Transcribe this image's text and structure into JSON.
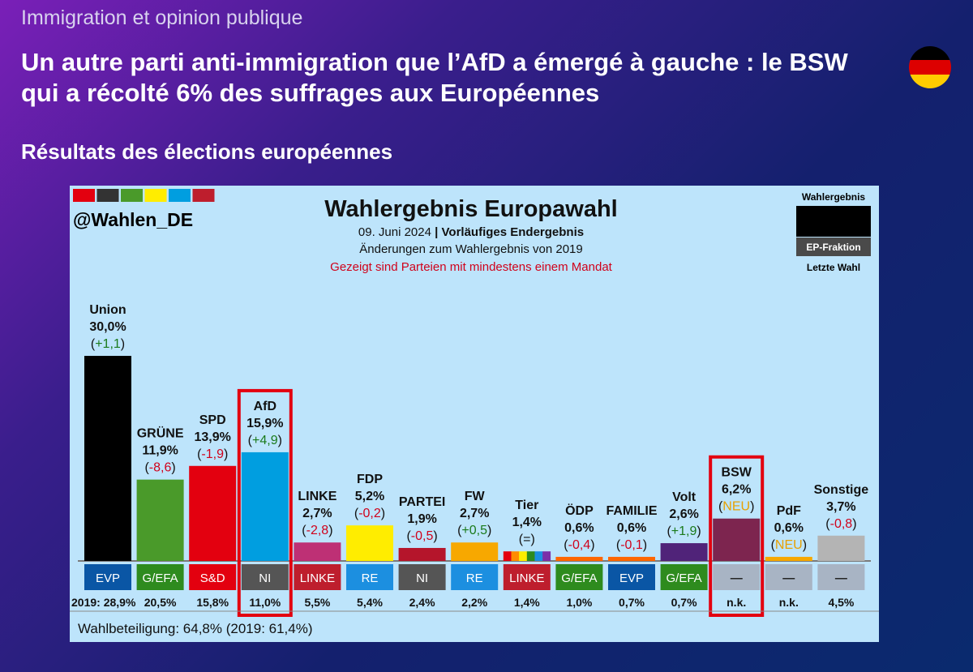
{
  "kicker": "Immigration et opinion publique",
  "headline": "Un autre parti anti-immigration que l’AfD a émergé à gauche : le BSW qui a récolté 6% des suffrages aux Européennes",
  "subhead": "Résultats des élections européennes",
  "flag_colors": [
    "#000000",
    "#dd0000",
    "#ffcc00"
  ],
  "chart_data": {
    "type": "bar",
    "handle": "@Wahlen_DE",
    "title": "Wahlergebnis Europawahl",
    "date": "09. Juni 2024",
    "status": "Vorläufiges Endergebnis",
    "subtitle": "Änderungen zum Wahlergebnis von 2019",
    "note": "Gezeigt sind Parteien mit mindestens einem Mandat",
    "legend": {
      "result": "Wahlergebnis",
      "group": "EP-Fraktion",
      "last": "Letzte Wahl"
    },
    "prev_prefix": "2019:",
    "turnout": "Wahlbeteiligung: 64,8% (2019: 61,4%)",
    "ylim": [
      0,
      30
    ],
    "categories": [
      "Union",
      "GRÜNE",
      "SPD",
      "AfD",
      "LINKE",
      "FDP",
      "PARTEI",
      "FW",
      "Tier",
      "ÖDP",
      "FAMILIE",
      "Volt",
      "BSW",
      "PdF",
      "Sonstige"
    ],
    "values": [
      30.0,
      11.9,
      13.9,
      15.9,
      2.7,
      5.2,
      1.9,
      2.7,
      1.4,
      0.6,
      0.6,
      2.6,
      6.2,
      0.6,
      3.7
    ],
    "value_labels": [
      "30,0%",
      "11,9%",
      "13,9%",
      "15,9%",
      "2,7%",
      "5,2%",
      "1,9%",
      "2,7%",
      "1,4%",
      "0,6%",
      "0,6%",
      "2,6%",
      "6,2%",
      "0,6%",
      "3,7%"
    ],
    "changes": [
      "+1,1",
      "-8,6",
      "-1,9",
      "+4,9",
      "-2,8",
      "-0,2",
      "-0,5",
      "+0,5",
      "=",
      "-0,4",
      "-0,1",
      "+1,9",
      "NEU",
      "NEU",
      "-0,8"
    ],
    "colors": [
      "#000000",
      "#4a9a2a",
      "#e3000f",
      "#009ee0",
      "#be3075",
      "#ffed00",
      "#b5152b",
      "#f7a800",
      "#e0e0e0",
      "#ff6600",
      "#ff6600",
      "#502379",
      "#7d254f",
      "#f7a800",
      "#b4b4b4"
    ],
    "ep_groups": [
      "EVP",
      "G/EFA",
      "S&D",
      "NI",
      "LINKE",
      "RE",
      "NI",
      "RE",
      "LINKE",
      "G/EFA",
      "EVP",
      "G/EFA",
      "—",
      "—",
      "—"
    ],
    "ep_colors": [
      "#0a56a5",
      "#2e8b1e",
      "#e3000f",
      "#555555",
      "#be1e2d",
      "#1c8fe0",
      "#555555",
      "#1c8fe0",
      "#be1e2d",
      "#2e8b1e",
      "#0a56a5",
      "#2e8b1e",
      "#a8b4c4",
      "#a8b4c4",
      "#a8b4c4"
    ],
    "previous": [
      "28,9%",
      "20,5%",
      "15,8%",
      "11,0%",
      "5,5%",
      "5,4%",
      "2,4%",
      "2,2%",
      "1,4%",
      "1,0%",
      "0,7%",
      "0,7%",
      "n.k.",
      "n.k.",
      "4,5%"
    ],
    "highlighted": [
      "AfD",
      "BSW"
    ],
    "accent_colors": {
      "highlight": "#e3000f",
      "positive": "#1a7a1a",
      "negative": "#d0021b",
      "new": "#e8a000",
      "note": "#d0021b"
    },
    "palette_strip": [
      "#e3000f",
      "#333333",
      "#4a9a2a",
      "#ffed00",
      "#009ee0",
      "#be1e2d"
    ]
  }
}
